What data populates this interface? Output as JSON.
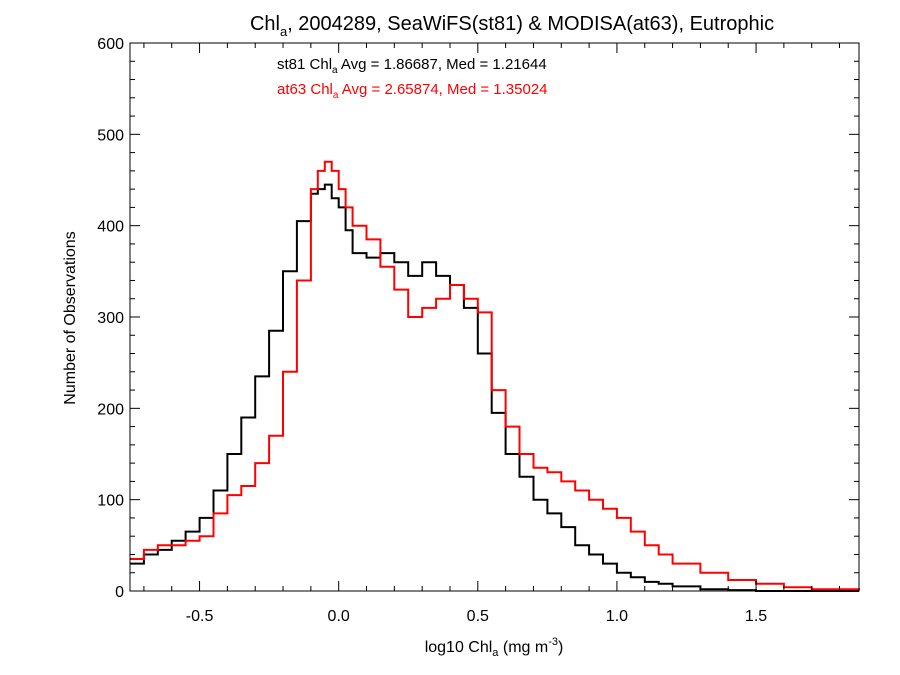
{
  "title": {
    "prefix": "Chl",
    "subscript": "a",
    "suffix": ", 2004289, SeaWiFS(st81) & MODISA(at63), Eutrophic"
  },
  "xlabel": {
    "prefix": "log10 Chl",
    "subscript": "a",
    "middle": " (mg m",
    "superscript": "-3",
    "suffix": ")"
  },
  "ylabel": "Number of Observations",
  "annotations": [
    {
      "series": "st81",
      "prefix": "st81 Chl",
      "subscript": "a",
      "suffix": " Avg = 1.86687, Med = 1.21644",
      "color": "#000000"
    },
    {
      "series": "at63",
      "prefix": "at63 Chl",
      "subscript": "a",
      "suffix": " Avg = 2.65874, Med = 1.35024",
      "color": "#ff0000"
    }
  ],
  "chart_data": {
    "type": "line",
    "step": true,
    "xlim": [
      -0.75,
      1.87
    ],
    "ylim": [
      0,
      600
    ],
    "x_ticks": [
      -0.5,
      0.0,
      0.5,
      1.0,
      1.5
    ],
    "x_tick_labels": [
      "-0.5",
      "0.0",
      "0.5",
      "1.0",
      "1.5"
    ],
    "y_ticks": [
      0,
      100,
      200,
      300,
      400,
      500,
      600
    ],
    "y_tick_labels": [
      "0",
      "100",
      "200",
      "300",
      "400",
      "500",
      "600"
    ],
    "grid": false,
    "series": [
      {
        "name": "st81",
        "color": "#000000",
        "x": [
          -0.75,
          -0.7,
          -0.65,
          -0.6,
          -0.55,
          -0.5,
          -0.45,
          -0.4,
          -0.35,
          -0.3,
          -0.25,
          -0.2,
          -0.15,
          -0.1,
          -0.075,
          -0.05,
          -0.025,
          0.0,
          0.025,
          0.05,
          0.1,
          0.15,
          0.2,
          0.25,
          0.3,
          0.35,
          0.4,
          0.45,
          0.5,
          0.55,
          0.6,
          0.65,
          0.7,
          0.75,
          0.8,
          0.85,
          0.9,
          0.95,
          1.0,
          1.05,
          1.1,
          1.15,
          1.2,
          1.3,
          1.4,
          1.5,
          1.6,
          1.7,
          1.87
        ],
        "y": [
          30,
          40,
          45,
          55,
          65,
          80,
          110,
          150,
          190,
          235,
          285,
          350,
          405,
          435,
          440,
          445,
          430,
          420,
          395,
          370,
          365,
          370,
          360,
          345,
          360,
          345,
          335,
          310,
          260,
          195,
          150,
          125,
          100,
          85,
          70,
          50,
          40,
          30,
          20,
          15,
          10,
          8,
          5,
          2,
          1,
          0,
          0,
          0,
          0
        ]
      },
      {
        "name": "at63",
        "color": "#ff0000",
        "x": [
          -0.75,
          -0.7,
          -0.65,
          -0.6,
          -0.55,
          -0.5,
          -0.45,
          -0.4,
          -0.35,
          -0.3,
          -0.25,
          -0.2,
          -0.15,
          -0.1,
          -0.075,
          -0.05,
          -0.025,
          0.0,
          0.025,
          0.05,
          0.1,
          0.15,
          0.2,
          0.25,
          0.3,
          0.35,
          0.4,
          0.45,
          0.5,
          0.55,
          0.6,
          0.65,
          0.7,
          0.75,
          0.8,
          0.85,
          0.9,
          0.95,
          1.0,
          1.05,
          1.1,
          1.15,
          1.2,
          1.3,
          1.4,
          1.5,
          1.6,
          1.7,
          1.87
        ],
        "y": [
          35,
          45,
          50,
          50,
          55,
          60,
          85,
          105,
          115,
          140,
          170,
          240,
          340,
          440,
          460,
          470,
          460,
          440,
          420,
          400,
          385,
          355,
          330,
          300,
          310,
          320,
          335,
          320,
          305,
          220,
          180,
          150,
          135,
          130,
          120,
          110,
          100,
          90,
          80,
          65,
          50,
          40,
          30,
          20,
          12,
          8,
          4,
          2,
          1
        ]
      }
    ]
  }
}
